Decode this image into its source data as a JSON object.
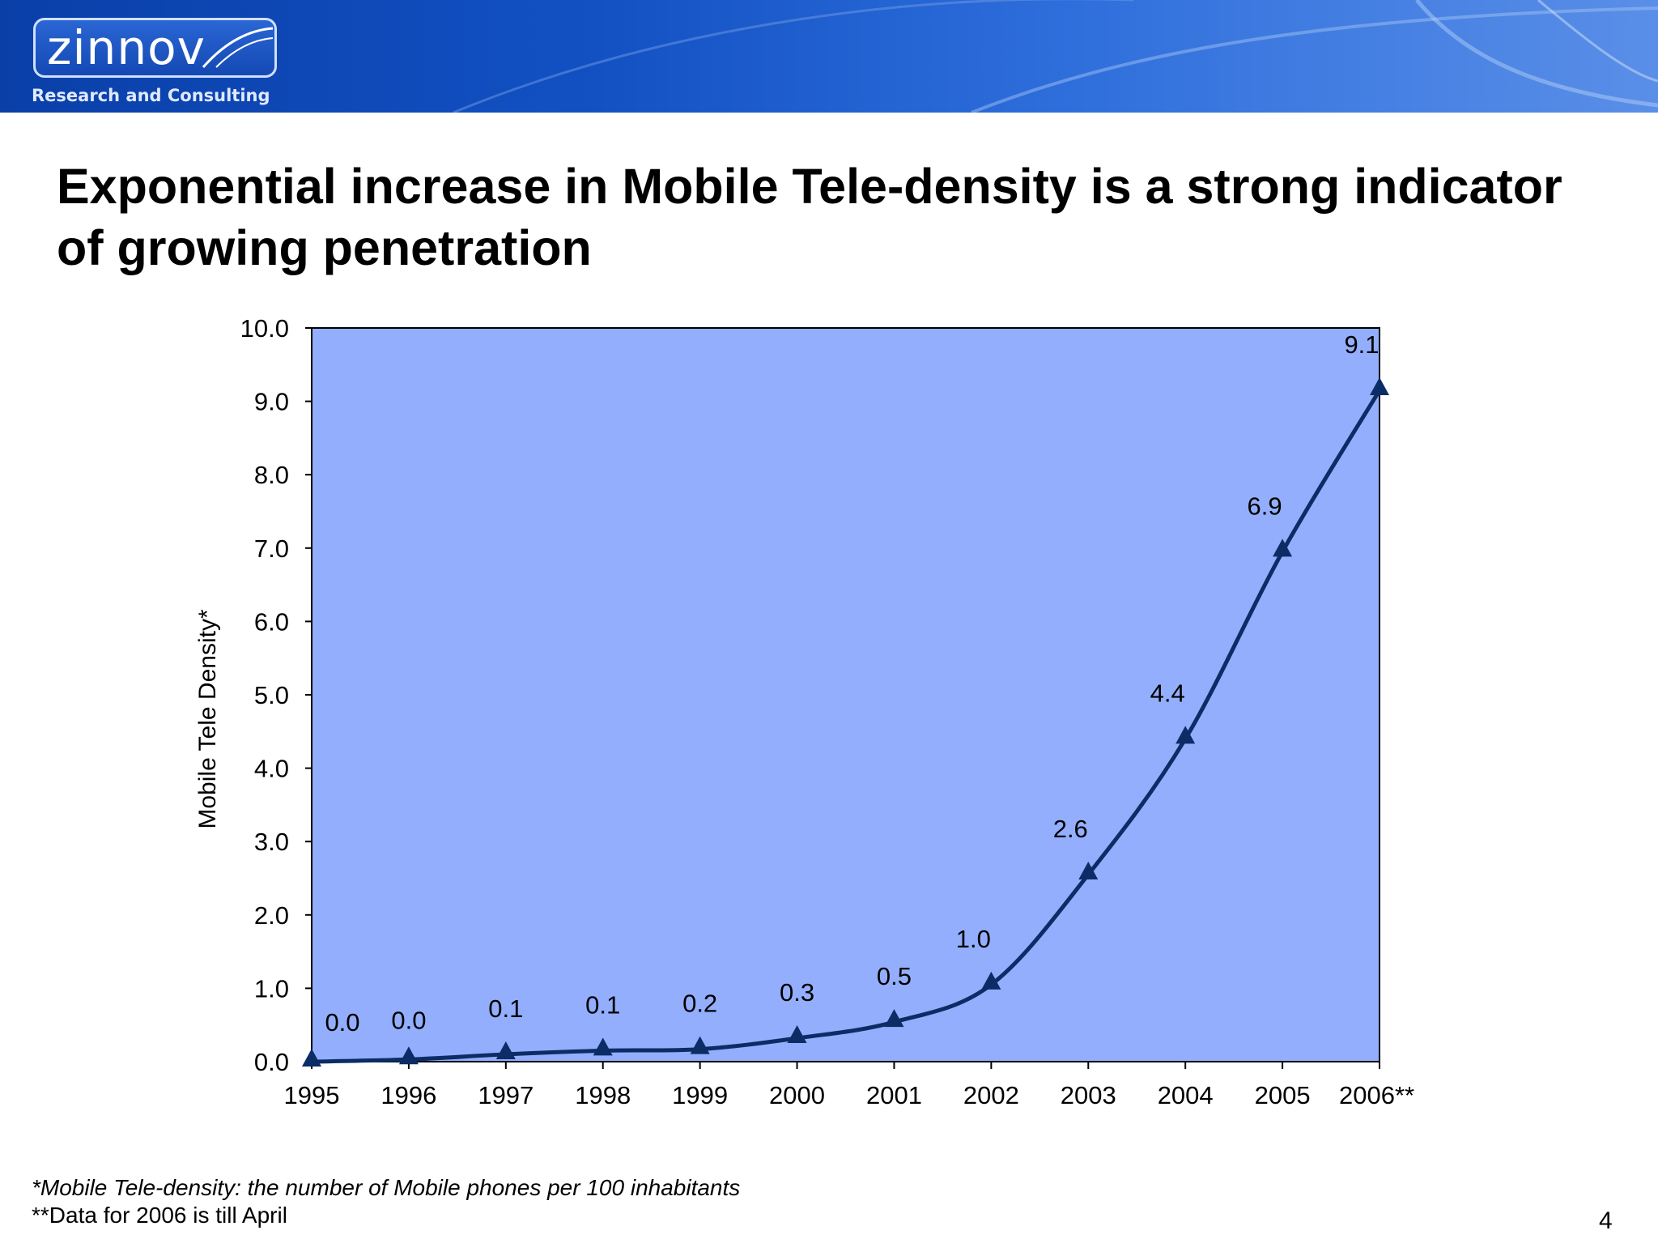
{
  "header": {
    "logo_text": "zinnov",
    "tagline": "Research and Consulting",
    "colors": {
      "banner_dark": "#0a3fa8",
      "banner_light": "#5a8fe8"
    }
  },
  "title": "Exponential increase in Mobile Tele-density is a strong indicator of growing penetration",
  "chart_data": {
    "type": "line",
    "categories": [
      "1995",
      "1996",
      "1997",
      "1998",
      "1999",
      "2000",
      "2001",
      "2002",
      "2003",
      "2004",
      "2005",
      "2006**"
    ],
    "series": [
      {
        "values": [
          0.0,
          0.03,
          0.1,
          0.15,
          0.17,
          0.32,
          0.54,
          1.05,
          2.55,
          4.4,
          6.95,
          9.15
        ],
        "data_labels": [
          "0.0",
          "0.0",
          "0.1",
          "0.1",
          "0.2",
          "0.3",
          "0.5",
          "1.0",
          "2.6",
          "4.4",
          "6.9",
          "9.1"
        ],
        "color": "#0c2c66",
        "marker": "triangle"
      }
    ],
    "ylabel": "Mobile Tele Density*",
    "xlabel": "",
    "ylim": [
      0,
      10
    ],
    "yticks": [
      "0.0",
      "1.0",
      "2.0",
      "3.0",
      "4.0",
      "5.0",
      "6.0",
      "7.0",
      "8.0",
      "9.0",
      "10.0"
    ],
    "plot_background": "#93aefc",
    "grid": false,
    "legend": "none"
  },
  "footnotes": [
    "*Mobile Tele-density:  the number of Mobile phones  per 100 inhabitants",
    "**Data for 2006 is till April"
  ],
  "page_number": "4"
}
